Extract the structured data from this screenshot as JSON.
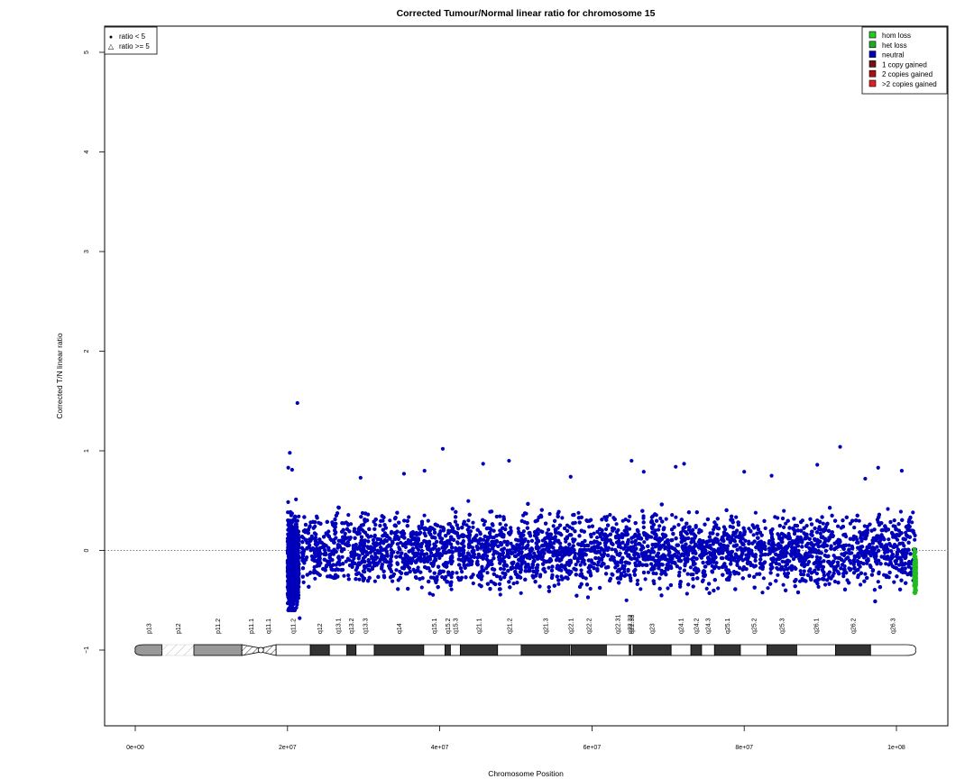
{
  "chart_data": {
    "type": "scatter",
    "title": "Corrected Tumour/Normal linear ratio for chromosome  15",
    "xlabel": "Chromosome Position",
    "ylabel": "Corrected T/N linear ratio",
    "xlim": [
      -4000000,
      107000000
    ],
    "ylim": [
      -1.8,
      5.3
    ],
    "x_ticks": [
      0,
      20000000,
      40000000,
      60000000,
      80000000,
      100000000
    ],
    "x_tick_labels": [
      "0e+00",
      "2e+07",
      "4e+07",
      "6e+07",
      "8e+07",
      "1e+08"
    ],
    "y_ticks": [
      -1,
      0,
      1,
      2,
      3,
      4,
      5
    ],
    "y_tick_labels": [
      "−1",
      "0",
      "1",
      "2",
      "3",
      "4",
      "5"
    ],
    "reference_line": {
      "y": 0,
      "style": "dotted",
      "color": "#555555"
    },
    "shape_legend": {
      "placement": "top-left",
      "entries": [
        {
          "symbol": "●",
          "label": "ratio < 5"
        },
        {
          "symbol": "△",
          "label": "ratio >= 5"
        }
      ]
    },
    "legend": {
      "placement": "top-right",
      "entries": [
        {
          "label": "hom loss",
          "color": "#22cc22"
        },
        {
          "label": "het loss",
          "color": "#22aa22"
        },
        {
          "label": "neutral",
          "color": "#0000bb"
        },
        {
          "label": "1 copy gained",
          "color": "#771111"
        },
        {
          "label": "2 copies gained",
          "color": "#aa1111"
        },
        {
          "label": ">2 copies gained",
          "color": "#dd2222"
        }
      ]
    },
    "series": [
      {
        "name": "neutral",
        "color": "#0000bb",
        "x_range": [
          20000000,
          102500000
        ],
        "y_range": [
          -0.45,
          0.45
        ],
        "gaps": [
          [
            21500000,
            21900000
          ],
          [
            82800000,
            83100000
          ]
        ],
        "outliers": [
          {
            "x": 21300000,
            "y": 1.48
          },
          {
            "x": 20300000,
            "y": 0.98
          },
          {
            "x": 20100000,
            "y": 0.83
          },
          {
            "x": 20600000,
            "y": 0.81
          },
          {
            "x": 21600000,
            "y": -0.68
          },
          {
            "x": 40400000,
            "y": 1.02
          },
          {
            "x": 49100000,
            "y": 0.9
          },
          {
            "x": 45700000,
            "y": 0.87
          },
          {
            "x": 65200000,
            "y": 0.9
          },
          {
            "x": 71000000,
            "y": 0.84
          },
          {
            "x": 72100000,
            "y": 0.87
          },
          {
            "x": 89600000,
            "y": 0.86
          },
          {
            "x": 92600000,
            "y": 1.04
          },
          {
            "x": 97600000,
            "y": 0.83
          },
          {
            "x": 100700000,
            "y": 0.8
          },
          {
            "x": 29600000,
            "y": 0.73
          },
          {
            "x": 35300000,
            "y": 0.77
          },
          {
            "x": 38000000,
            "y": 0.8
          },
          {
            "x": 57200000,
            "y": 0.74
          },
          {
            "x": 66800000,
            "y": 0.79
          },
          {
            "x": 80000000,
            "y": 0.79
          },
          {
            "x": 83600000,
            "y": 0.75
          },
          {
            "x": 95900000,
            "y": 0.72
          }
        ]
      },
      {
        "name": "het loss",
        "color": "#22bb22",
        "x_range": [
          102300000,
          102600000
        ],
        "y_range": [
          -0.5,
          0.05
        ]
      }
    ],
    "ideogram": {
      "y": -1,
      "bands": [
        {
          "name": "p13",
          "start": 0,
          "end": 3500000,
          "stain": "gvar"
        },
        {
          "name": "p12",
          "start": 3500000,
          "end": 7700000,
          "stain": "stalk"
        },
        {
          "name": "p11.2",
          "start": 7700000,
          "end": 14000000,
          "stain": "gvar"
        },
        {
          "name": "p11.1",
          "start": 14000000,
          "end": 16500000,
          "stain": "hatched"
        },
        {
          "name": "q11.1",
          "start": 16500000,
          "end": 18500000,
          "stain": "hatched"
        },
        {
          "name": "q11.2",
          "start": 18500000,
          "end": 23000000,
          "stain": "gneg"
        },
        {
          "name": "q12",
          "start": 23000000,
          "end": 25500000,
          "stain": "gpos"
        },
        {
          "name": "q13.1",
          "start": 25500000,
          "end": 27800000,
          "stain": "gneg"
        },
        {
          "name": "q13.2",
          "start": 27800000,
          "end": 29000000,
          "stain": "gpos"
        },
        {
          "name": "q13.3",
          "start": 29000000,
          "end": 31400000,
          "stain": "gneg"
        },
        {
          "name": "q14",
          "start": 31400000,
          "end": 37900000,
          "stain": "gpos"
        },
        {
          "name": "q15.1",
          "start": 37900000,
          "end": 40700000,
          "stain": "gneg"
        },
        {
          "name": "q15.2",
          "start": 40700000,
          "end": 41400000,
          "stain": "gpos"
        },
        {
          "name": "q15.3",
          "start": 41400000,
          "end": 42700000,
          "stain": "gneg"
        },
        {
          "name": "q21.1",
          "start": 42700000,
          "end": 47600000,
          "stain": "gpos"
        },
        {
          "name": "q21.2",
          "start": 47600000,
          "end": 50700000,
          "stain": "gneg"
        },
        {
          "name": "q21.3",
          "start": 50700000,
          "end": 57100000,
          "stain": "gpos"
        },
        {
          "name": "q22.1",
          "start": 57100000,
          "end": 57300000,
          "stain": "gneg"
        },
        {
          "name": "q22.2",
          "start": 57300000,
          "end": 61900000,
          "stain": "gpos"
        },
        {
          "name": "q22.31",
          "start": 61900000,
          "end": 64900000,
          "stain": "gneg"
        },
        {
          "name": "q22.32",
          "start": 64900000,
          "end": 65100000,
          "stain": "gpos"
        },
        {
          "name": "q22.33",
          "start": 65100000,
          "end": 65400000,
          "stain": "gneg"
        },
        {
          "name": "q23",
          "start": 65400000,
          "end": 70400000,
          "stain": "gpos"
        },
        {
          "name": "q24.1",
          "start": 70400000,
          "end": 73000000,
          "stain": "gneg"
        },
        {
          "name": "q24.2",
          "start": 73000000,
          "end": 74400000,
          "stain": "gpos"
        },
        {
          "name": "q24.3",
          "start": 74400000,
          "end": 76100000,
          "stain": "gneg"
        },
        {
          "name": "q25.1",
          "start": 76100000,
          "end": 79500000,
          "stain": "gpos"
        },
        {
          "name": "q25.2",
          "start": 79500000,
          "end": 83000000,
          "stain": "gneg"
        },
        {
          "name": "q25.3",
          "start": 83000000,
          "end": 86900000,
          "stain": "gpos"
        },
        {
          "name": "q26.1",
          "start": 86900000,
          "end": 92000000,
          "stain": "gneg"
        },
        {
          "name": "q26.2",
          "start": 92000000,
          "end": 96600000,
          "stain": "gpos"
        },
        {
          "name": "q26.3",
          "start": 96600000,
          "end": 102500000,
          "stain": "gneg"
        }
      ]
    }
  }
}
